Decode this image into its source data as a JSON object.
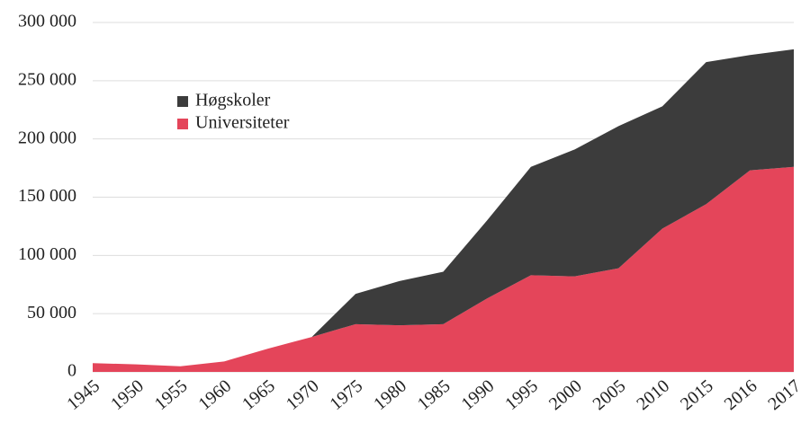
{
  "chart_data": {
    "type": "stacked_area",
    "categories": [
      "1945",
      "1950",
      "1955",
      "1960",
      "1965",
      "1970",
      "1975",
      "1980",
      "1985",
      "1990",
      "1995",
      "2000",
      "2005",
      "2010",
      "2015",
      "2016",
      "2017"
    ],
    "series": [
      {
        "name": "Universiteter",
        "color": "#e4455a",
        "values": [
          7500,
          6500,
          4800,
          9000,
          20000,
          30000,
          41000,
          40000,
          41000,
          63000,
          83000,
          82000,
          89000,
          123000,
          144000,
          173000,
          176000
        ]
      },
      {
        "name": "Høgskoler",
        "color": "#3c3c3c",
        "values": [
          0,
          0,
          0,
          0,
          0,
          0,
          26000,
          38000,
          45000,
          67000,
          93000,
          109000,
          122000,
          105000,
          122000,
          99000,
          101000
        ]
      }
    ],
    "ylim": [
      0,
      300000
    ],
    "yticks": [
      0,
      {
        "value": 50000,
        "label": "50 000"
      },
      {
        "value": 100000,
        "label": "100 000"
      },
      {
        "value": 150000,
        "label": "150 000"
      },
      {
        "value": 200000,
        "label": "200 000"
      },
      {
        "value": 250000,
        "label": "250 000"
      },
      {
        "value": 300000,
        "label": "300 000"
      }
    ],
    "grid": true,
    "legend": "upper-left"
  }
}
